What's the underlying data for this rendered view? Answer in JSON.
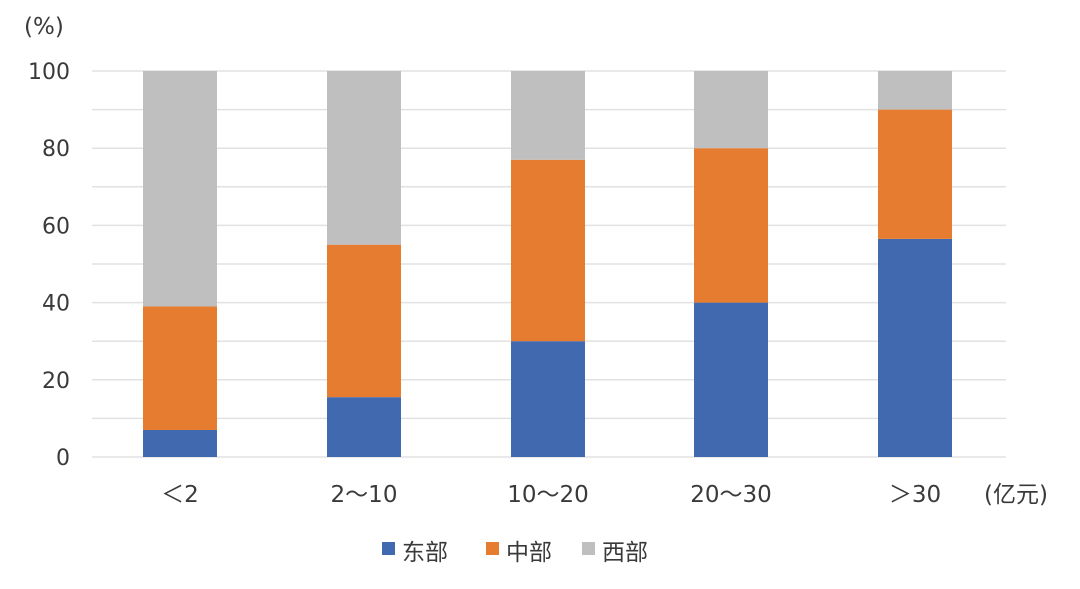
{
  "chart_data": {
    "type": "bar",
    "stacked": true,
    "ylabel": "(%)",
    "xlabel": "(亿元)",
    "ylim": [
      0,
      100
    ],
    "yticks": [
      0,
      20,
      40,
      60,
      80,
      100
    ],
    "grid": true,
    "legend_position": "bottom",
    "categories": [
      "＜2",
      "2～10",
      "10～20",
      "20～30",
      "＞30"
    ],
    "series": [
      {
        "name": "东部",
        "color": "#4169b0",
        "values": [
          7,
          15.5,
          30,
          40,
          56.5
        ]
      },
      {
        "name": "中部",
        "color": "#e67c30",
        "values": [
          32,
          39.5,
          47,
          40,
          33.5
        ]
      },
      {
        "name": "西部",
        "color": "#bfbfbf",
        "values": [
          61,
          45,
          23,
          20,
          10
        ]
      }
    ]
  }
}
